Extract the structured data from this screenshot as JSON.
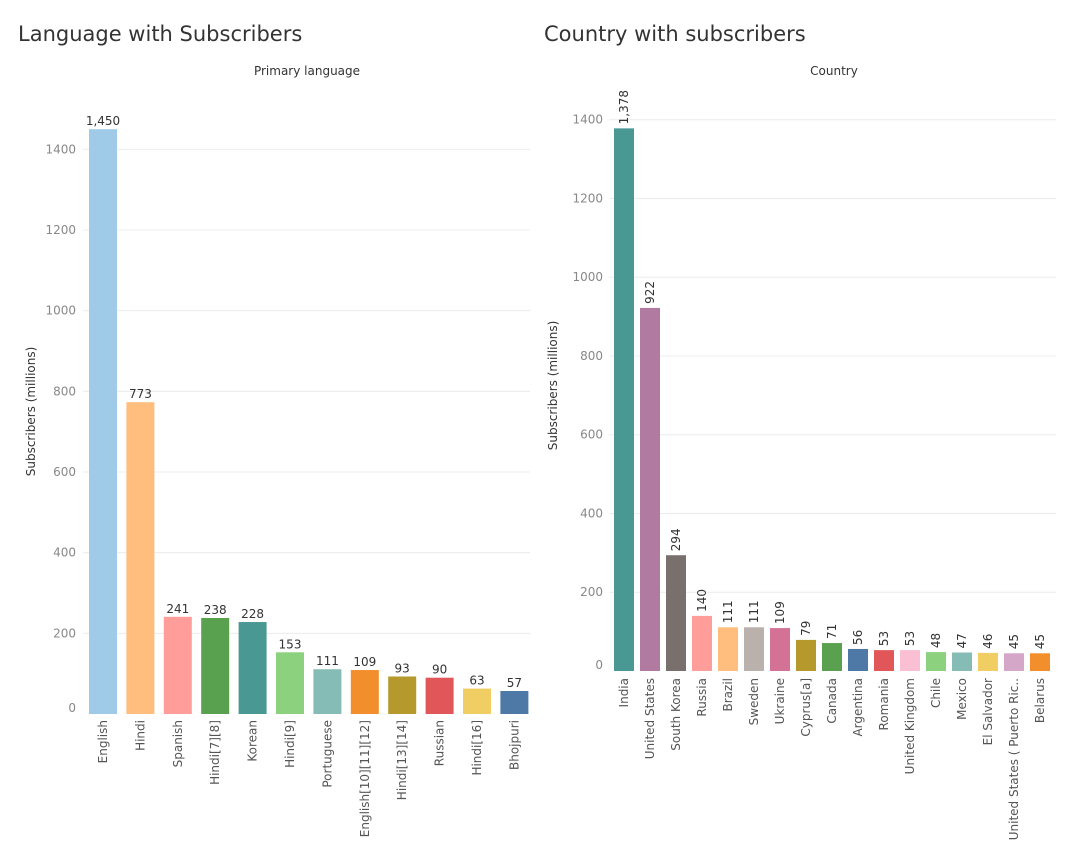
{
  "chart_data": [
    {
      "type": "bar",
      "title": "Language with Subscribers",
      "header": "Primary language",
      "ylabel": "Subscribers (millions)",
      "ylim": [
        0,
        1500
      ],
      "yticks": [
        0,
        200,
        400,
        600,
        800,
        1000,
        1200,
        1400
      ],
      "label_orientation": "horizontal",
      "categories": [
        "English",
        "Hindi",
        "Spanish",
        "Hindi[7][8]",
        "Korean",
        "Hindi[9]",
        "Portuguese",
        "English[10][11][12]",
        "Hindi[13][14]",
        "Russian",
        "Hindi[16]",
        "Bhojpuri"
      ],
      "values": [
        1450,
        773,
        241,
        238,
        228,
        153,
        111,
        109,
        93,
        90,
        63,
        57
      ],
      "value_labels": [
        "1,450",
        "773",
        "241",
        "238",
        "228",
        "153",
        "111",
        "109",
        "93",
        "90",
        "63",
        "57"
      ],
      "colors": [
        "#a0cbe8",
        "#ffbe7d",
        "#ff9d9a",
        "#59a14f",
        "#499894",
        "#8cd17d",
        "#86bcb6",
        "#f28e2b",
        "#b6992d",
        "#e15759",
        "#f1ce63",
        "#4e79a7"
      ]
    },
    {
      "type": "bar",
      "title": "Country with subscribers",
      "header": "Country",
      "ylabel": "Subscribers (millions)",
      "ylim": [
        0,
        1450
      ],
      "yticks": [
        0,
        200,
        400,
        600,
        800,
        1000,
        1200,
        1400
      ],
      "label_orientation": "vertical",
      "categories": [
        "India",
        "United States",
        "South Korea",
        "Russia",
        "Brazil",
        "Sweden",
        "Ukraine",
        "Cyprus[a]",
        "Canada",
        "Argentina",
        "Romania",
        "United Kingdom",
        "Chile",
        "Mexico",
        "El Salvador",
        "United States ( Puerto Ric..",
        "Belarus"
      ],
      "values": [
        1378,
        922,
        294,
        140,
        111,
        111,
        109,
        79,
        71,
        56,
        53,
        53,
        48,
        47,
        46,
        45,
        45
      ],
      "value_labels": [
        "1,378",
        "922",
        "294",
        "140",
        "111",
        "111",
        "109",
        "79",
        "71",
        "56",
        "53",
        "53",
        "48",
        "47",
        "46",
        "45",
        "45"
      ],
      "colors": [
        "#499894",
        "#b07aa1",
        "#79706e",
        "#ff9d9a",
        "#ffbe7d",
        "#bab0ac",
        "#d37295",
        "#b6992d",
        "#59a14f",
        "#4e79a7",
        "#e15759",
        "#fabfd2",
        "#8cd17d",
        "#86bcb6",
        "#f1ce63",
        "#d4a6c8",
        "#f28e2b"
      ]
    }
  ]
}
